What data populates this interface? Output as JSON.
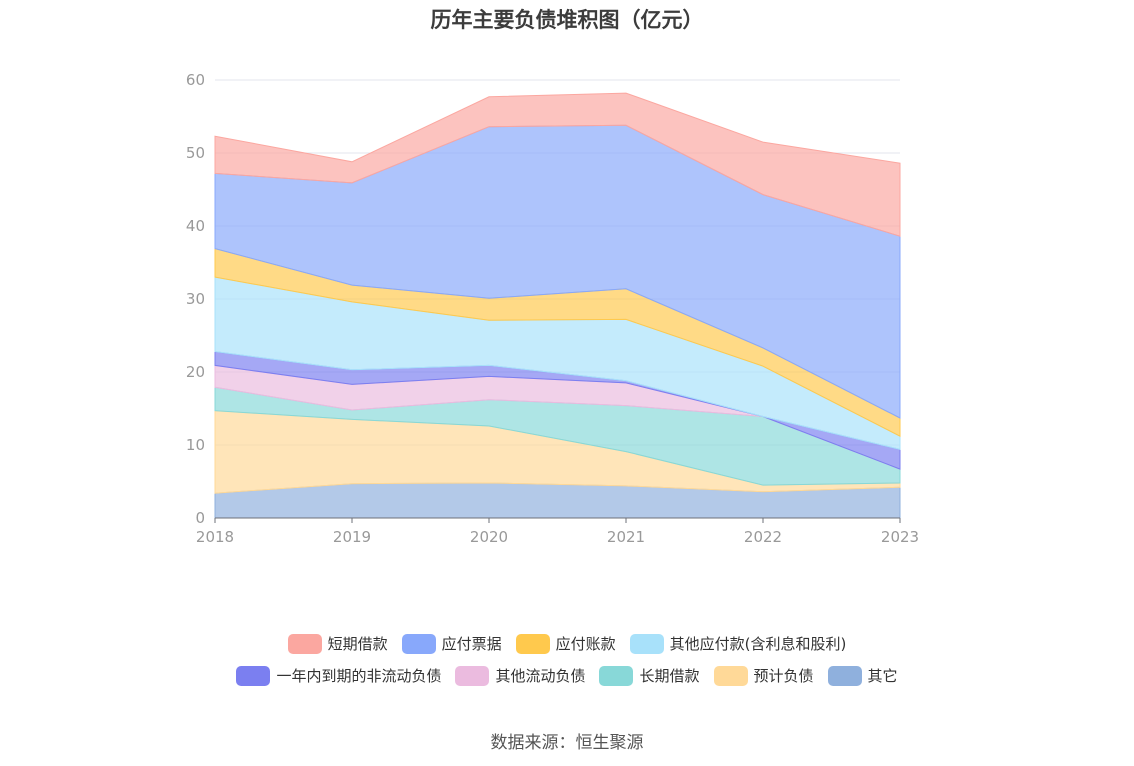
{
  "chart_data": {
    "type": "area",
    "title": "历年主要负债堆积图（亿元）",
    "categories": [
      "2018",
      "2019",
      "2020",
      "2021",
      "2022",
      "2023"
    ],
    "ylim": [
      0,
      60
    ],
    "yticks": [
      0,
      10,
      20,
      30,
      40,
      50,
      60
    ],
    "stacked": true,
    "grid": true,
    "legend_position": "bottom",
    "series": [
      {
        "name": "其它",
        "color": "#8fb0dd",
        "values": [
          3.4,
          4.7,
          4.8,
          4.4,
          3.6,
          4.2
        ]
      },
      {
        "name": "预计负债",
        "color": "#ffd998",
        "values": [
          11.3,
          8.8,
          7.8,
          4.7,
          0.9,
          0.6
        ]
      },
      {
        "name": "长期借款",
        "color": "#88d8d8",
        "values": [
          3.2,
          1.3,
          3.6,
          6.3,
          9.4,
          1.9
        ]
      },
      {
        "name": "其他流动负债",
        "color": "#ebbbdf",
        "values": [
          3.0,
          3.5,
          3.2,
          3.1,
          0.0,
          0.0
        ]
      },
      {
        "name": "一年内到期的非流动负债",
        "color": "#7b7ff0",
        "values": [
          1.9,
          2.0,
          1.5,
          0.3,
          0.0,
          2.7
        ]
      },
      {
        "name": "其他应付款(含利息和股利)",
        "color": "#a8e1fa",
        "values": [
          10.2,
          9.3,
          6.2,
          8.4,
          6.9,
          1.8
        ]
      },
      {
        "name": "应付账款",
        "color": "#ffc94d",
        "values": [
          3.9,
          2.3,
          3.0,
          4.2,
          2.5,
          2.5
        ]
      },
      {
        "name": "应付票据",
        "color": "#88a8fb",
        "values": [
          10.3,
          14.0,
          23.5,
          22.4,
          21.0,
          24.9
        ]
      },
      {
        "name": "短期借款",
        "color": "#fba7a0",
        "values": [
          5.1,
          2.9,
          4.1,
          4.4,
          7.2,
          10.0
        ]
      }
    ]
  },
  "legend": {
    "row1": [
      {
        "label": "短期借款",
        "color": "#fba7a0"
      },
      {
        "label": "应付票据",
        "color": "#88a8fb"
      },
      {
        "label": "应付账款",
        "color": "#ffc94d"
      },
      {
        "label": "其他应付款(含利息和股利)",
        "color": "#a8e1fa"
      }
    ],
    "row2": [
      {
        "label": "一年内到期的非流动负债",
        "color": "#7b7ff0"
      },
      {
        "label": "其他流动负债",
        "color": "#ebbbdf"
      },
      {
        "label": "长期借款",
        "color": "#88d8d8"
      },
      {
        "label": "预计负债",
        "color": "#ffd998"
      },
      {
        "label": "其它",
        "color": "#8fb0dd"
      }
    ]
  },
  "source": "数据来源：恒生聚源"
}
